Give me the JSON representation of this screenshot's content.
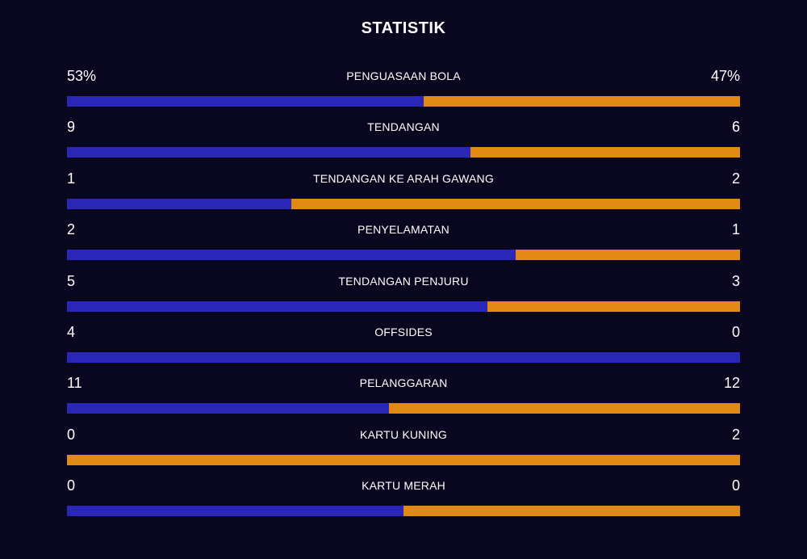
{
  "title": "STATISTIK",
  "colors": {
    "background": "#08071f",
    "home": "#2a27b8",
    "away": "#e08a14"
  },
  "chart_data": {
    "type": "bar",
    "orientation": "horizontal-split",
    "title": "STATISTIK",
    "categories": [
      "PENGUASAAN BOLA",
      "TENDANGAN",
      "TENDANGAN KE ARAH GAWANG",
      "PENYELAMATAN",
      "TENDANGAN PENJURU",
      "OFFSIDES",
      "PELANGGARAN",
      "KARTU KUNING",
      "KARTU MERAH"
    ],
    "home_display": [
      "53%",
      "9",
      "1",
      "2",
      "5",
      "4",
      "11",
      "0",
      "0"
    ],
    "away_display": [
      "47%",
      "6",
      "2",
      "1",
      "3",
      "0",
      "12",
      "2",
      "0"
    ],
    "series": [
      {
        "values": [
          53,
          9,
          1,
          2,
          5,
          4,
          11,
          0,
          0
        ]
      },
      {
        "values": [
          47,
          6,
          2,
          1,
          3,
          0,
          12,
          2,
          0
        ]
      }
    ],
    "grid": false,
    "legend": "none"
  }
}
